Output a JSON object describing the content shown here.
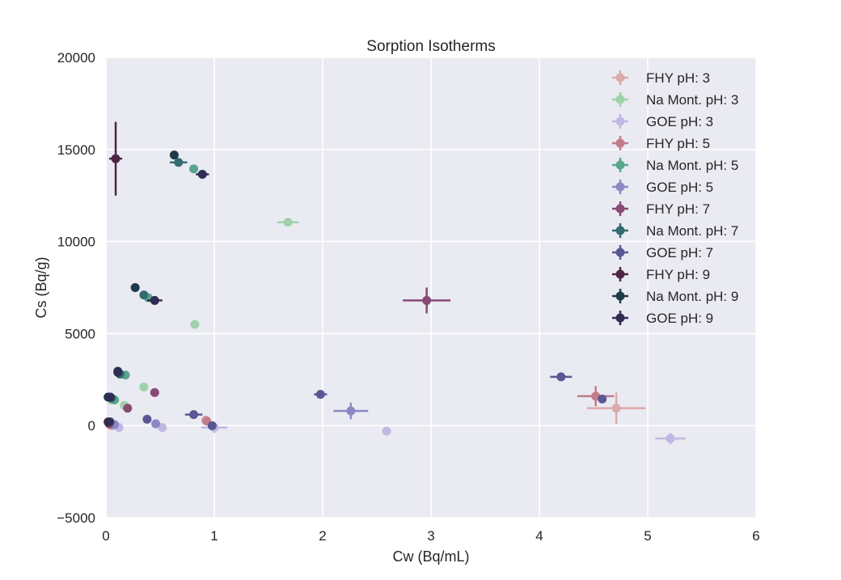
{
  "chart_data": {
    "type": "scatter",
    "title": "Sorption Isotherms",
    "xlabel": "Cw (Bq/mL)",
    "ylabel": "Cs (Bq/g)",
    "xlim": [
      0,
      6
    ],
    "ylim": [
      -5000,
      20000
    ],
    "x_ticks": [
      0,
      1,
      2,
      3,
      4,
      5,
      6
    ],
    "x_tick_labels": [
      "0",
      "1",
      "2",
      "3",
      "4",
      "5",
      "6"
    ],
    "y_ticks": [
      -5000,
      0,
      5000,
      10000,
      15000,
      20000
    ],
    "y_tick_labels": [
      "−5000",
      "0",
      "5000",
      "10000",
      "15000",
      "20000"
    ],
    "grid": true,
    "legend_position": "top-right",
    "background": "#eaeaf2",
    "series": [
      {
        "name": "FHY pH: 3",
        "color": "#dcaaa9",
        "points": [
          {
            "x": 4.71,
            "y": 950,
            "xerr": 0.27,
            "yerr": 850
          },
          {
            "x": 0.92,
            "y": 300
          },
          {
            "x": 0.05,
            "y": 0
          }
        ]
      },
      {
        "name": "Na Mont. pH: 3",
        "color": "#9fd1ab",
        "points": [
          {
            "x": 1.68,
            "y": 11050,
            "xerr": 0.1,
            "yerr": 150
          },
          {
            "x": 0.82,
            "y": 5500
          },
          {
            "x": 0.35,
            "y": 2100
          },
          {
            "x": 0.17,
            "y": 1100
          },
          {
            "x": 0.05,
            "y": 1400
          }
        ]
      },
      {
        "name": "GOE pH: 3",
        "color": "#bfb8e4",
        "points": [
          {
            "x": 5.21,
            "y": -700,
            "xerr": 0.14,
            "yerr": 300
          },
          {
            "x": 2.59,
            "y": -300
          },
          {
            "x": 1.0,
            "y": -100,
            "xerr": 0.12,
            "yerr": 300
          },
          {
            "x": 0.52,
            "y": -100
          },
          {
            "x": 0.12,
            "y": -100
          }
        ]
      },
      {
        "name": "FHY pH: 5",
        "color": "#c17c8a",
        "points": [
          {
            "x": 4.52,
            "y": 1600,
            "xerr": 0.17,
            "yerr": 550
          },
          {
            "x": 0.93,
            "y": 250
          },
          {
            "x": 0.06,
            "y": 50
          }
        ]
      },
      {
        "name": "Na Mont. pH: 5",
        "color": "#5aa58d",
        "points": [
          {
            "x": 0.81,
            "y": 13950
          },
          {
            "x": 0.39,
            "y": 6950
          },
          {
            "x": 0.18,
            "y": 2750
          },
          {
            "x": 0.08,
            "y": 1400
          }
        ]
      },
      {
        "name": "GOE pH: 5",
        "color": "#8d87c4",
        "points": [
          {
            "x": 2.26,
            "y": 800,
            "xerr": 0.16,
            "yerr": 450
          },
          {
            "x": 0.46,
            "y": 100
          },
          {
            "x": 0.08,
            "y": 50
          }
        ]
      },
      {
        "name": "FHY pH: 7",
        "color": "#874a74",
        "points": [
          {
            "x": 2.96,
            "y": 6800,
            "xerr": 0.22,
            "yerr": 700
          },
          {
            "x": 0.45,
            "y": 1800
          },
          {
            "x": 0.2,
            "y": 950
          },
          {
            "x": 0.03,
            "y": 100
          }
        ]
      },
      {
        "name": "Na Mont. pH: 7",
        "color": "#346b70",
        "points": [
          {
            "x": 0.67,
            "y": 14300,
            "xerr": 0.08,
            "yerr": 100
          },
          {
            "x": 0.35,
            "y": 7100
          },
          {
            "x": 0.13,
            "y": 2800
          },
          {
            "x": 0.05,
            "y": 1500
          }
        ]
      },
      {
        "name": "GOE pH: 7",
        "color": "#595892",
        "points": [
          {
            "x": 4.58,
            "y": 1450
          },
          {
            "x": 4.2,
            "y": 2650,
            "xerr": 0.1,
            "yerr": 100
          },
          {
            "x": 1.98,
            "y": 1700,
            "xerr": 0.06,
            "yerr": 100
          },
          {
            "x": 0.81,
            "y": 600,
            "xerr": 0.08,
            "yerr": 100
          },
          {
            "x": 0.38,
            "y": 350
          },
          {
            "x": 0.98,
            "y": 0
          },
          {
            "x": 0.04,
            "y": 200
          }
        ]
      },
      {
        "name": "FHY pH: 9",
        "color": "#4e2545",
        "points": [
          {
            "x": 0.09,
            "y": 14500,
            "xerr": 0.06,
            "yerr": 2000
          },
          {
            "x": 0.02,
            "y": 200
          }
        ]
      },
      {
        "name": "Na Mont. pH: 9",
        "color": "#1d3a4a",
        "points": [
          {
            "x": 0.63,
            "y": 14700
          },
          {
            "x": 0.27,
            "y": 7500
          },
          {
            "x": 0.11,
            "y": 2950
          },
          {
            "x": 0.02,
            "y": 1550
          }
        ]
      },
      {
        "name": "GOE pH: 9",
        "color": "#302c54",
        "points": [
          {
            "x": 0.89,
            "y": 13650,
            "xerr": 0.06,
            "yerr": 100
          },
          {
            "x": 0.45,
            "y": 6800,
            "xerr": 0.07,
            "yerr": 100
          },
          {
            "x": 0.11,
            "y": 2900
          },
          {
            "x": 0.04,
            "y": 1550
          },
          {
            "x": 0.03,
            "y": 200
          }
        ]
      }
    ]
  }
}
